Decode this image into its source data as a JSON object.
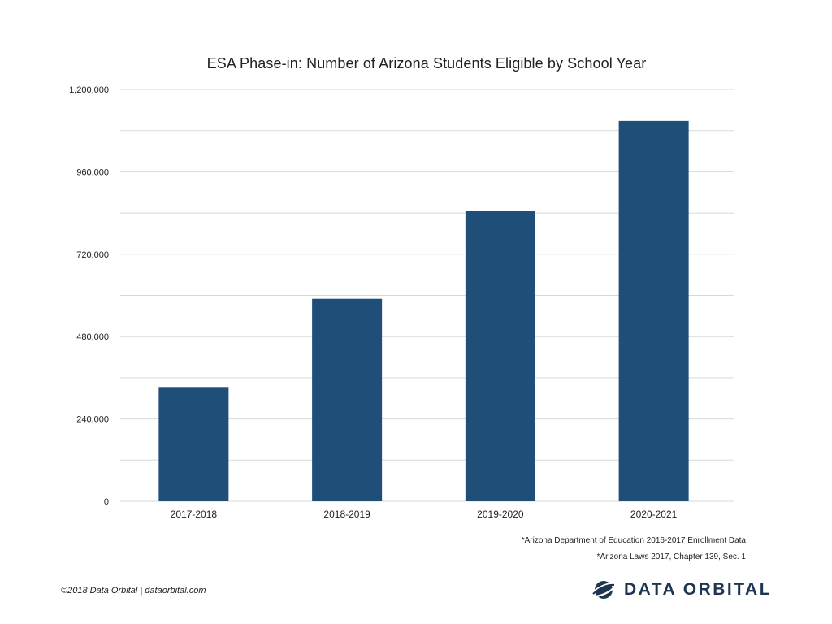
{
  "chart_data": {
    "type": "bar",
    "title": "ESA Phase-in: Number of Arizona Students Eligible by School Year",
    "categories": [
      "2017-2018",
      "2018-2019",
      "2019-2020",
      "2020-2021"
    ],
    "values": [
      333000,
      590000,
      845000,
      1108000
    ],
    "ylim": [
      0,
      1200000
    ],
    "yticks": [
      0,
      240000,
      480000,
      720000,
      960000,
      1200000
    ],
    "ytick_labels": [
      "0",
      "240,000",
      "480,000",
      "720,000",
      "960,000",
      "1,200,000"
    ],
    "grid": true,
    "bar_color": "#1f4e79",
    "xlabel": "",
    "ylabel": ""
  },
  "notes": {
    "source_1": "*Arizona Department of Education 2016-2017 Enrollment Data",
    "source_2": "*Arizona Laws 2017, Chapter 139, Sec. 1"
  },
  "footer": {
    "copyright": "©2018 Data Orbital | dataorbital.com",
    "brand_name": "DATA ORBITAL",
    "brand_color": "#1e3550",
    "logo_icon": "orbit-logo-icon"
  }
}
